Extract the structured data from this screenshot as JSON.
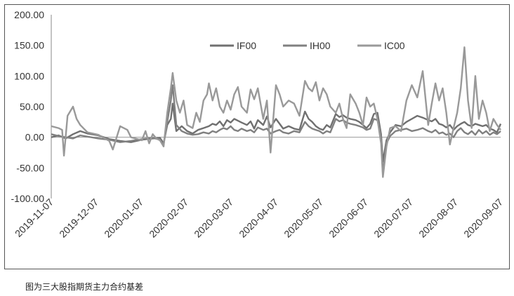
{
  "chart_data": {
    "type": "line",
    "title": "",
    "xlabel": "",
    "ylabel": "",
    "ylim": [
      -100,
      200
    ],
    "yticks": [
      "200.00",
      "150.00",
      "100.00",
      "50.00",
      "0.00",
      "-50.00",
      "-100.00"
    ],
    "xticks": [
      "2019-11-07",
      "2019-12-07",
      "2020-01-07",
      "2020-02-07",
      "2020-03-07",
      "2020-04-07",
      "2020-05-07",
      "2020-06-07",
      "2020-07-07",
      "2020-08-07",
      "2020-09-07"
    ],
    "grid": false,
    "legend": "top-right",
    "series": [
      {
        "name": "IF00",
        "color": "#707070",
        "points": [
          [
            0,
            0
          ],
          [
            4,
            3
          ],
          [
            8,
            -2
          ],
          [
            12,
            5
          ],
          [
            16,
            10
          ],
          [
            20,
            6
          ],
          [
            26,
            3
          ],
          [
            32,
            -3
          ],
          [
            38,
            -6
          ],
          [
            44,
            -8
          ],
          [
            50,
            -4
          ],
          [
            56,
            -2
          ],
          [
            60,
            -1
          ],
          [
            62,
            -10
          ],
          [
            64,
            20
          ],
          [
            66,
            30
          ],
          [
            67,
            55
          ],
          [
            69,
            10
          ],
          [
            72,
            18
          ],
          [
            75,
            10
          ],
          [
            78,
            6
          ],
          [
            81,
            12
          ],
          [
            84,
            15
          ],
          [
            87,
            18
          ],
          [
            89,
            22
          ],
          [
            91,
            20
          ],
          [
            93,
            26
          ],
          [
            95,
            18
          ],
          [
            97,
            28
          ],
          [
            99,
            24
          ],
          [
            101,
            30
          ],
          [
            103,
            27
          ],
          [
            105,
            24
          ],
          [
            108,
            20
          ],
          [
            110,
            26
          ],
          [
            112,
            14
          ],
          [
            114,
            28
          ],
          [
            117,
            20
          ],
          [
            119,
            34
          ],
          [
            121,
            16
          ],
          [
            124,
            30
          ],
          [
            126,
            22
          ],
          [
            128,
            14
          ],
          [
            131,
            18
          ],
          [
            134,
            14
          ],
          [
            137,
            12
          ],
          [
            140,
            42
          ],
          [
            142,
            30
          ],
          [
            144,
            25
          ],
          [
            146,
            18
          ],
          [
            148,
            14
          ],
          [
            150,
            12
          ],
          [
            152,
            20
          ],
          [
            154,
            16
          ],
          [
            157,
            38
          ],
          [
            159,
            33
          ],
          [
            161,
            36
          ],
          [
            163,
            32
          ],
          [
            165,
            30
          ],
          [
            168,
            28
          ],
          [
            170,
            25
          ],
          [
            172,
            20
          ],
          [
            174,
            15
          ],
          [
            176,
            22
          ],
          [
            178,
            38
          ],
          [
            180,
            40
          ],
          [
            182,
            5
          ],
          [
            183,
            -40
          ],
          [
            185,
            -5
          ],
          [
            187,
            8
          ],
          [
            190,
            20
          ],
          [
            193,
            18
          ],
          [
            196,
            25
          ],
          [
            199,
            30
          ],
          [
            202,
            35
          ],
          [
            205,
            32
          ],
          [
            208,
            28
          ],
          [
            210,
            26
          ],
          [
            212,
            30
          ],
          [
            214,
            22
          ],
          [
            216,
            20
          ],
          [
            218,
            16
          ],
          [
            220,
            20
          ],
          [
            222,
            12
          ],
          [
            224,
            18
          ],
          [
            226,
            22
          ],
          [
            228,
            25
          ],
          [
            230,
            20
          ],
          [
            232,
            18
          ],
          [
            234,
            22
          ],
          [
            236,
            20
          ],
          [
            238,
            18
          ],
          [
            240,
            20
          ],
          [
            242,
            14
          ],
          [
            244,
            12
          ],
          [
            246,
            8
          ],
          [
            248,
            22
          ]
        ]
      },
      {
        "name": "IH00",
        "color": "#808080",
        "points": [
          [
            0,
            5
          ],
          [
            4,
            2
          ],
          [
            8,
            0
          ],
          [
            12,
            -2
          ],
          [
            16,
            3
          ],
          [
            20,
            1
          ],
          [
            26,
            -2
          ],
          [
            32,
            -4
          ],
          [
            38,
            -8
          ],
          [
            44,
            -6
          ],
          [
            50,
            -3
          ],
          [
            56,
            -1
          ],
          [
            60,
            -4
          ],
          [
            62,
            -12
          ],
          [
            64,
            25
          ],
          [
            66,
            60
          ],
          [
            67,
            85
          ],
          [
            69,
            20
          ],
          [
            72,
            10
          ],
          [
            75,
            6
          ],
          [
            78,
            4
          ],
          [
            81,
            5
          ],
          [
            84,
            8
          ],
          [
            87,
            6
          ],
          [
            89,
            10
          ],
          [
            91,
            8
          ],
          [
            93,
            12
          ],
          [
            95,
            15
          ],
          [
            97,
            13
          ],
          [
            99,
            18
          ],
          [
            101,
            12
          ],
          [
            103,
            10
          ],
          [
            105,
            14
          ],
          [
            108,
            10
          ],
          [
            110,
            12
          ],
          [
            112,
            8
          ],
          [
            114,
            16
          ],
          [
            117,
            12
          ],
          [
            119,
            14
          ],
          [
            121,
            6
          ],
          [
            124,
            10
          ],
          [
            126,
            12
          ],
          [
            128,
            8
          ],
          [
            131,
            6
          ],
          [
            134,
            10
          ],
          [
            137,
            8
          ],
          [
            140,
            25
          ],
          [
            142,
            18
          ],
          [
            144,
            14
          ],
          [
            146,
            12
          ],
          [
            148,
            10
          ],
          [
            150,
            6
          ],
          [
            152,
            10
          ],
          [
            154,
            8
          ],
          [
            157,
            30
          ],
          [
            159,
            26
          ],
          [
            161,
            28
          ],
          [
            163,
            24
          ],
          [
            165,
            22
          ],
          [
            168,
            20
          ],
          [
            170,
            18
          ],
          [
            172,
            16
          ],
          [
            174,
            12
          ],
          [
            176,
            14
          ],
          [
            178,
            30
          ],
          [
            180,
            28
          ],
          [
            182,
            2
          ],
          [
            183,
            -60
          ],
          [
            185,
            -10
          ],
          [
            187,
            2
          ],
          [
            190,
            10
          ],
          [
            193,
            12
          ],
          [
            196,
            14
          ],
          [
            199,
            10
          ],
          [
            202,
            12
          ],
          [
            205,
            15
          ],
          [
            208,
            10
          ],
          [
            210,
            8
          ],
          [
            212,
            12
          ],
          [
            214,
            6
          ],
          [
            216,
            8
          ],
          [
            218,
            4
          ],
          [
            220,
            6
          ],
          [
            222,
            0
          ],
          [
            224,
            10
          ],
          [
            226,
            15
          ],
          [
            228,
            8
          ],
          [
            230,
            5
          ],
          [
            232,
            10
          ],
          [
            234,
            4
          ],
          [
            236,
            12
          ],
          [
            238,
            6
          ],
          [
            240,
            10
          ],
          [
            242,
            4
          ],
          [
            244,
            8
          ],
          [
            246,
            5
          ],
          [
            248,
            10
          ]
        ]
      },
      {
        "name": "IC00",
        "color": "#999999",
        "points": [
          [
            0,
            18
          ],
          [
            4,
            15
          ],
          [
            6,
            12
          ],
          [
            7,
            -30
          ],
          [
            9,
            35
          ],
          [
            12,
            50
          ],
          [
            14,
            30
          ],
          [
            16,
            20
          ],
          [
            20,
            8
          ],
          [
            26,
            4
          ],
          [
            32,
            -6
          ],
          [
            34,
            -20
          ],
          [
            38,
            18
          ],
          [
            42,
            12
          ],
          [
            44,
            0
          ],
          [
            50,
            -5
          ],
          [
            52,
            10
          ],
          [
            54,
            -10
          ],
          [
            56,
            5
          ],
          [
            58,
            -2
          ],
          [
            60,
            -5
          ],
          [
            62,
            -15
          ],
          [
            64,
            40
          ],
          [
            66,
            80
          ],
          [
            67,
            105
          ],
          [
            69,
            60
          ],
          [
            71,
            40
          ],
          [
            73,
            60
          ],
          [
            75,
            20
          ],
          [
            78,
            15
          ],
          [
            80,
            40
          ],
          [
            82,
            25
          ],
          [
            84,
            60
          ],
          [
            86,
            70
          ],
          [
            87,
            88
          ],
          [
            89,
            60
          ],
          [
            91,
            80
          ],
          [
            93,
            50
          ],
          [
            95,
            40
          ],
          [
            97,
            60
          ],
          [
            99,
            45
          ],
          [
            101,
            70
          ],
          [
            103,
            82
          ],
          [
            105,
            50
          ],
          [
            108,
            40
          ],
          [
            110,
            78
          ],
          [
            112,
            62
          ],
          [
            114,
            80
          ],
          [
            117,
            30
          ],
          [
            119,
            60
          ],
          [
            121,
            -25
          ],
          [
            124,
            85
          ],
          [
            126,
            70
          ],
          [
            128,
            50
          ],
          [
            131,
            60
          ],
          [
            134,
            55
          ],
          [
            137,
            35
          ],
          [
            140,
            92
          ],
          [
            142,
            80
          ],
          [
            144,
            75
          ],
          [
            146,
            90
          ],
          [
            148,
            60
          ],
          [
            150,
            80
          ],
          [
            152,
            70
          ],
          [
            154,
            50
          ],
          [
            157,
            40
          ],
          [
            159,
            55
          ],
          [
            161,
            30
          ],
          [
            163,
            15
          ],
          [
            165,
            70
          ],
          [
            168,
            55
          ],
          [
            170,
            40
          ],
          [
            172,
            20
          ],
          [
            174,
            65
          ],
          [
            176,
            50
          ],
          [
            178,
            55
          ],
          [
            180,
            30
          ],
          [
            182,
            -10
          ],
          [
            183,
            -65
          ],
          [
            185,
            -15
          ],
          [
            187,
            15
          ],
          [
            190,
            18
          ],
          [
            193,
            10
          ],
          [
            196,
            60
          ],
          [
            199,
            85
          ],
          [
            202,
            65
          ],
          [
            205,
            108
          ],
          [
            208,
            20
          ],
          [
            210,
            55
          ],
          [
            212,
            88
          ],
          [
            214,
            60
          ],
          [
            216,
            80
          ],
          [
            218,
            40
          ],
          [
            220,
            -12
          ],
          [
            222,
            15
          ],
          [
            224,
            40
          ],
          [
            226,
            80
          ],
          [
            228,
            147
          ],
          [
            230,
            60
          ],
          [
            232,
            15
          ],
          [
            234,
            100
          ],
          [
            236,
            30
          ],
          [
            238,
            60
          ],
          [
            240,
            40
          ],
          [
            242,
            10
          ],
          [
            244,
            30
          ],
          [
            246,
            20
          ],
          [
            248,
            12
          ]
        ]
      }
    ]
  },
  "caption": "图为三大股指期货主力合约基差"
}
